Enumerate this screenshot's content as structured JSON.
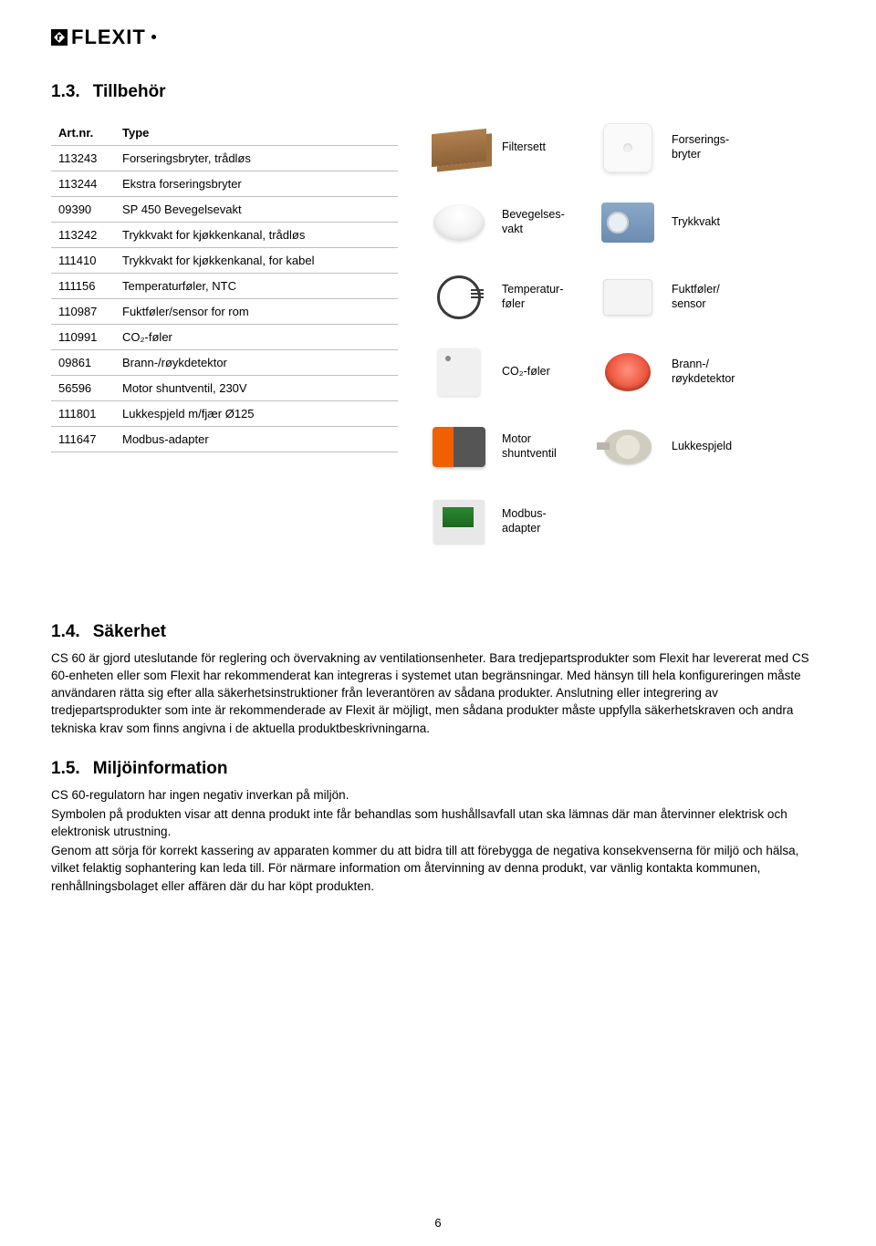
{
  "logo_text": "FLEXIT",
  "section_13": {
    "num": "1.3.",
    "title": "Tillbehör"
  },
  "table": {
    "headers": {
      "artnr": "Art.nr.",
      "type": "Type"
    },
    "rows": [
      {
        "artnr": "113243",
        "type": "Forseringsbryter, trådløs"
      },
      {
        "artnr": "113244",
        "type": "Ekstra forseringsbryter"
      },
      {
        "artnr": "09390",
        "type": "SP 450 Bevegelsevakt"
      },
      {
        "artnr": "113242",
        "type": "Trykkvakt for kjøkkenkanal, trådløs"
      },
      {
        "artnr": "111410",
        "type": "Trykkvakt for kjøkkenkanal, for kabel"
      },
      {
        "artnr": "111156",
        "type": "Temperaturføler, NTC"
      },
      {
        "artnr": "110987",
        "type": "Fuktføler/sensor for rom"
      },
      {
        "artnr": "110991",
        "type": "CO₂-føler"
      },
      {
        "artnr": "09861",
        "type": "Brann-/røykdetektor"
      },
      {
        "artnr": "56596",
        "type": "Motor shuntventil, 230V"
      },
      {
        "artnr": "111801",
        "type": "Lukkespjeld m/fjær Ø125"
      },
      {
        "artnr": "111647",
        "type": "Modbus-adapter"
      }
    ]
  },
  "visuals": {
    "row1": {
      "left": "Filtersett",
      "right": "Forserings-\nbryter"
    },
    "row2": {
      "left": "Bevegelses-\nvakt",
      "right": "Trykkvakt"
    },
    "row3": {
      "left": "Temperatur-\nføler",
      "right": "Fuktføler/\nsensor"
    },
    "row4": {
      "left": "CO₂-føler",
      "right": "Brann-/\nrøykdetektor"
    },
    "row5": {
      "left": "Motor\nshuntventil",
      "right": "Lukkespjeld"
    },
    "row6": {
      "left": "Modbus-\nadapter"
    }
  },
  "section_14": {
    "num": "1.4.",
    "title": "Säkerhet",
    "p1": "CS 60 är gjord uteslutande för reglering och övervakning av ventilationsenheter. Bara tredjepartsprodukter som Flexit har levererat med CS 60-enheten eller som Flexit har rekommenderat kan integreras i systemet utan begränsningar. Med hänsyn till hela konfigureringen måste användaren rätta sig efter alla säkerhetsinstruktioner från leverantören av sådana produkter. Anslutning eller integrering av tredjepartsprodukter som inte är rekommenderade av Flexit är möjligt, men sådana produkter måste uppfylla säkerhetskraven och andra tekniska krav som finns angivna i de aktuella produktbeskrivningarna."
  },
  "section_15": {
    "num": "1.5.",
    "title": "Miljöinformation",
    "p1": "CS 60-regulatorn har ingen negativ inverkan på miljön.",
    "p2": "Symbolen på produkten visar att denna produkt inte får behandlas som hushållsavfall utan ska lämnas där man återvinner elektrisk och elektronisk utrustning.",
    "p3": "Genom att sörja för korrekt kassering av apparaten kommer du att bidra till att förebygga de negativa konsekvenserna för miljö och hälsa, vilket felaktig sophantering kan leda till. För närmare information om återvinning av denna produkt, var vänlig kontakta kommunen, renhållningsbolaget eller affären där du har köpt produkten."
  },
  "page_number": "6"
}
